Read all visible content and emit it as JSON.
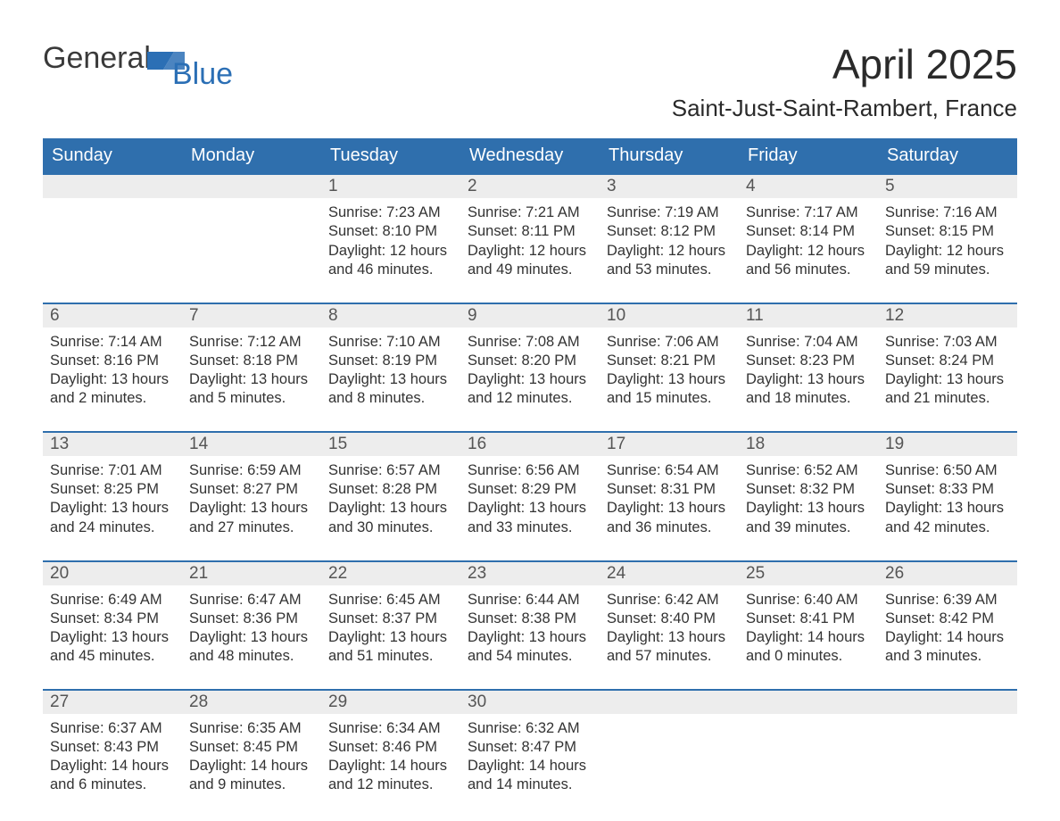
{
  "logo": {
    "part1": "General",
    "part2": "Blue"
  },
  "title": "April 2025",
  "subtitle": "Saint-Just-Saint-Rambert, France",
  "colors": {
    "header_bg": "#2f6fad",
    "header_text": "#ffffff",
    "daynum_bg": "#ededed",
    "row_border": "#2f6fad",
    "logo_blue": "#2b6fb5",
    "text": "#333333",
    "page_bg": "#ffffff"
  },
  "type": "calendar-table",
  "day_headers": [
    "Sunday",
    "Monday",
    "Tuesday",
    "Wednesday",
    "Thursday",
    "Friday",
    "Saturday"
  ],
  "weeks": [
    [
      {
        "num": "",
        "sunrise": "",
        "sunset": "",
        "daylight": ""
      },
      {
        "num": "",
        "sunrise": "",
        "sunset": "",
        "daylight": ""
      },
      {
        "num": "1",
        "sunrise": "Sunrise: 7:23 AM",
        "sunset": "Sunset: 8:10 PM",
        "daylight": "Daylight: 12 hours and 46 minutes."
      },
      {
        "num": "2",
        "sunrise": "Sunrise: 7:21 AM",
        "sunset": "Sunset: 8:11 PM",
        "daylight": "Daylight: 12 hours and 49 minutes."
      },
      {
        "num": "3",
        "sunrise": "Sunrise: 7:19 AM",
        "sunset": "Sunset: 8:12 PM",
        "daylight": "Daylight: 12 hours and 53 minutes."
      },
      {
        "num": "4",
        "sunrise": "Sunrise: 7:17 AM",
        "sunset": "Sunset: 8:14 PM",
        "daylight": "Daylight: 12 hours and 56 minutes."
      },
      {
        "num": "5",
        "sunrise": "Sunrise: 7:16 AM",
        "sunset": "Sunset: 8:15 PM",
        "daylight": "Daylight: 12 hours and 59 minutes."
      }
    ],
    [
      {
        "num": "6",
        "sunrise": "Sunrise: 7:14 AM",
        "sunset": "Sunset: 8:16 PM",
        "daylight": "Daylight: 13 hours and 2 minutes."
      },
      {
        "num": "7",
        "sunrise": "Sunrise: 7:12 AM",
        "sunset": "Sunset: 8:18 PM",
        "daylight": "Daylight: 13 hours and 5 minutes."
      },
      {
        "num": "8",
        "sunrise": "Sunrise: 7:10 AM",
        "sunset": "Sunset: 8:19 PM",
        "daylight": "Daylight: 13 hours and 8 minutes."
      },
      {
        "num": "9",
        "sunrise": "Sunrise: 7:08 AM",
        "sunset": "Sunset: 8:20 PM",
        "daylight": "Daylight: 13 hours and 12 minutes."
      },
      {
        "num": "10",
        "sunrise": "Sunrise: 7:06 AM",
        "sunset": "Sunset: 8:21 PM",
        "daylight": "Daylight: 13 hours and 15 minutes."
      },
      {
        "num": "11",
        "sunrise": "Sunrise: 7:04 AM",
        "sunset": "Sunset: 8:23 PM",
        "daylight": "Daylight: 13 hours and 18 minutes."
      },
      {
        "num": "12",
        "sunrise": "Sunrise: 7:03 AM",
        "sunset": "Sunset: 8:24 PM",
        "daylight": "Daylight: 13 hours and 21 minutes."
      }
    ],
    [
      {
        "num": "13",
        "sunrise": "Sunrise: 7:01 AM",
        "sunset": "Sunset: 8:25 PM",
        "daylight": "Daylight: 13 hours and 24 minutes."
      },
      {
        "num": "14",
        "sunrise": "Sunrise: 6:59 AM",
        "sunset": "Sunset: 8:27 PM",
        "daylight": "Daylight: 13 hours and 27 minutes."
      },
      {
        "num": "15",
        "sunrise": "Sunrise: 6:57 AM",
        "sunset": "Sunset: 8:28 PM",
        "daylight": "Daylight: 13 hours and 30 minutes."
      },
      {
        "num": "16",
        "sunrise": "Sunrise: 6:56 AM",
        "sunset": "Sunset: 8:29 PM",
        "daylight": "Daylight: 13 hours and 33 minutes."
      },
      {
        "num": "17",
        "sunrise": "Sunrise: 6:54 AM",
        "sunset": "Sunset: 8:31 PM",
        "daylight": "Daylight: 13 hours and 36 minutes."
      },
      {
        "num": "18",
        "sunrise": "Sunrise: 6:52 AM",
        "sunset": "Sunset: 8:32 PM",
        "daylight": "Daylight: 13 hours and 39 minutes."
      },
      {
        "num": "19",
        "sunrise": "Sunrise: 6:50 AM",
        "sunset": "Sunset: 8:33 PM",
        "daylight": "Daylight: 13 hours and 42 minutes."
      }
    ],
    [
      {
        "num": "20",
        "sunrise": "Sunrise: 6:49 AM",
        "sunset": "Sunset: 8:34 PM",
        "daylight": "Daylight: 13 hours and 45 minutes."
      },
      {
        "num": "21",
        "sunrise": "Sunrise: 6:47 AM",
        "sunset": "Sunset: 8:36 PM",
        "daylight": "Daylight: 13 hours and 48 minutes."
      },
      {
        "num": "22",
        "sunrise": "Sunrise: 6:45 AM",
        "sunset": "Sunset: 8:37 PM",
        "daylight": "Daylight: 13 hours and 51 minutes."
      },
      {
        "num": "23",
        "sunrise": "Sunrise: 6:44 AM",
        "sunset": "Sunset: 8:38 PM",
        "daylight": "Daylight: 13 hours and 54 minutes."
      },
      {
        "num": "24",
        "sunrise": "Sunrise: 6:42 AM",
        "sunset": "Sunset: 8:40 PM",
        "daylight": "Daylight: 13 hours and 57 minutes."
      },
      {
        "num": "25",
        "sunrise": "Sunrise: 6:40 AM",
        "sunset": "Sunset: 8:41 PM",
        "daylight": "Daylight: 14 hours and 0 minutes."
      },
      {
        "num": "26",
        "sunrise": "Sunrise: 6:39 AM",
        "sunset": "Sunset: 8:42 PM",
        "daylight": "Daylight: 14 hours and 3 minutes."
      }
    ],
    [
      {
        "num": "27",
        "sunrise": "Sunrise: 6:37 AM",
        "sunset": "Sunset: 8:43 PM",
        "daylight": "Daylight: 14 hours and 6 minutes."
      },
      {
        "num": "28",
        "sunrise": "Sunrise: 6:35 AM",
        "sunset": "Sunset: 8:45 PM",
        "daylight": "Daylight: 14 hours and 9 minutes."
      },
      {
        "num": "29",
        "sunrise": "Sunrise: 6:34 AM",
        "sunset": "Sunset: 8:46 PM",
        "daylight": "Daylight: 14 hours and 12 minutes."
      },
      {
        "num": "30",
        "sunrise": "Sunrise: 6:32 AM",
        "sunset": "Sunset: 8:47 PM",
        "daylight": "Daylight: 14 hours and 14 minutes."
      },
      {
        "num": "",
        "sunrise": "",
        "sunset": "",
        "daylight": ""
      },
      {
        "num": "",
        "sunrise": "",
        "sunset": "",
        "daylight": ""
      },
      {
        "num": "",
        "sunrise": "",
        "sunset": "",
        "daylight": ""
      }
    ]
  ]
}
